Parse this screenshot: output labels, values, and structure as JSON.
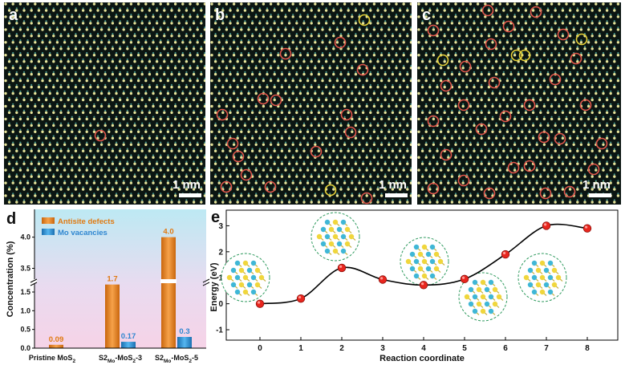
{
  "panels": {
    "a": {
      "label": "a",
      "scale_bar": "1 nm"
    },
    "b": {
      "label": "b",
      "scale_bar": "1 nm"
    },
    "c": {
      "label": "c",
      "scale_bar": "1 nm"
    },
    "d": {
      "label": "d"
    },
    "e": {
      "label": "e"
    }
  },
  "colors": {
    "stem_bg": "#0b1512",
    "atom_yellow": "#e6e39a",
    "atom_teal": "#3f8f86",
    "antisite_circle": "#e2574c",
    "vacancy_circle": "#e6d23a",
    "antisite_bar": "#f08a1e",
    "vacancy_bar": "#2f97dd",
    "curve": "#000000",
    "point": "#e8261e"
  },
  "chart_data": [
    {
      "type": "bar",
      "panel": "d",
      "categories": [
        "Pristine MoS2",
        "S2Mo-MoS2-3",
        "S2Mo-MoS2-5"
      ],
      "category_labels": [
        {
          "main": "Pristine MoS",
          "sub": "2",
          "tail": ""
        },
        {
          "main": "S2",
          "sub": "Mo",
          "mid": "-MoS",
          "sub2": "2",
          "tail": "-3"
        },
        {
          "main": "S2",
          "sub": "Mo",
          "mid": "-MoS",
          "sub2": "2",
          "tail": "-5"
        }
      ],
      "series": [
        {
          "name": "Antisite defects",
          "values": [
            0.09,
            1.7,
            4.0
          ],
          "labels": [
            "0.09",
            "1.7",
            "4.0"
          ],
          "color": "#f08a1e"
        },
        {
          "name": "Mo vacancies",
          "values": [
            0,
            0.17,
            0.3
          ],
          "labels": [
            "",
            "0.17",
            "0.3"
          ],
          "color": "#2f97dd"
        }
      ],
      "ylabel": "Concentration (%)",
      "yticks_lower": [
        "0.0",
        "0.5",
        "1.0",
        "1.5"
      ],
      "yticks_upper": [
        "3.5",
        "4.0"
      ],
      "broken_axis": true,
      "legend": "top-left"
    },
    {
      "type": "line",
      "panel": "e",
      "x": [
        0,
        1,
        2,
        3,
        4,
        5,
        6,
        7,
        8
      ],
      "y": [
        0.0,
        0.2,
        1.38,
        0.93,
        0.72,
        0.95,
        1.9,
        3.0,
        2.9
      ],
      "xlabel": "Reaction coordinate",
      "ylabel": "Energy (eV)",
      "xticks": [
        "0",
        "1",
        "2",
        "3",
        "4",
        "5",
        "6",
        "7",
        "8"
      ],
      "yticks": [
        "-1",
        "0",
        "1",
        "2",
        "3"
      ],
      "ylim": [
        -1.4,
        3.6
      ]
    }
  ]
}
